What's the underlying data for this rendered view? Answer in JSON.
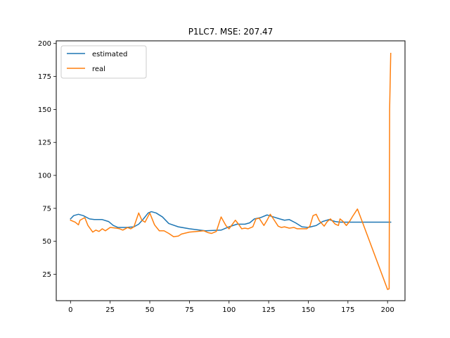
{
  "chart_data": {
    "type": "line",
    "title": "P1LC7. MSE: 207.47",
    "xlabel": "",
    "ylabel": "",
    "xlim": [
      -9,
      211
    ],
    "ylim": [
      5,
      202
    ],
    "xticks": [
      0,
      25,
      50,
      75,
      100,
      125,
      150,
      175,
      200
    ],
    "yticks": [
      25,
      50,
      75,
      100,
      125,
      150,
      175,
      200
    ],
    "legend": "top-left",
    "grid": false,
    "series": [
      {
        "name": "estimated",
        "color": "#1f77b4",
        "points": [
          [
            0,
            67
          ],
          [
            2,
            69.5
          ],
          [
            5,
            70.5
          ],
          [
            8,
            69.5
          ],
          [
            12,
            67
          ],
          [
            15,
            66.5
          ],
          [
            20,
            66.5
          ],
          [
            24,
            65
          ],
          [
            27,
            62
          ],
          [
            30,
            60.5
          ],
          [
            35,
            60.5
          ],
          [
            40,
            61
          ],
          [
            43,
            63
          ],
          [
            46,
            67
          ],
          [
            49,
            71.5
          ],
          [
            51,
            72.5
          ],
          [
            54,
            71.5
          ],
          [
            58,
            68.5
          ],
          [
            62,
            63.5
          ],
          [
            68,
            61
          ],
          [
            75,
            59.5
          ],
          [
            85,
            58
          ],
          [
            95,
            58.5
          ],
          [
            100,
            61
          ],
          [
            105,
            63
          ],
          [
            110,
            63
          ],
          [
            113,
            64
          ],
          [
            116,
            67
          ],
          [
            120,
            68
          ],
          [
            124,
            70
          ],
          [
            128,
            68.5
          ],
          [
            132,
            67
          ],
          [
            135,
            66
          ],
          [
            138,
            66.5
          ],
          [
            142,
            64
          ],
          [
            146,
            61
          ],
          [
            150,
            60.5
          ],
          [
            155,
            62
          ],
          [
            159,
            65
          ],
          [
            163,
            66.5
          ],
          [
            167,
            65
          ],
          [
            170,
            64.5
          ],
          [
            175,
            64.5
          ],
          [
            180,
            64.5
          ],
          [
            190,
            64.5
          ],
          [
            202,
            64.5
          ]
        ]
      },
      {
        "name": "real",
        "color": "#ff7f0e",
        "points": [
          [
            0,
            66
          ],
          [
            3,
            64.5
          ],
          [
            5,
            62.5
          ],
          [
            6,
            66
          ],
          [
            9,
            68
          ],
          [
            11,
            62
          ],
          [
            14,
            57
          ],
          [
            16,
            58.5
          ],
          [
            18,
            57.5
          ],
          [
            20,
            59.5
          ],
          [
            22,
            58
          ],
          [
            25,
            60.5
          ],
          [
            29,
            60
          ],
          [
            31,
            59.5
          ],
          [
            33,
            58.5
          ],
          [
            36,
            60.5
          ],
          [
            38,
            59.5
          ],
          [
            40,
            61
          ],
          [
            43,
            71.5
          ],
          [
            45,
            66
          ],
          [
            47,
            64.5
          ],
          [
            50,
            71.5
          ],
          [
            53,
            62.5
          ],
          [
            56,
            58
          ],
          [
            59,
            58
          ],
          [
            62,
            56
          ],
          [
            65,
            53.5
          ],
          [
            68,
            54
          ],
          [
            70,
            55.5
          ],
          [
            75,
            57
          ],
          [
            80,
            57.5
          ],
          [
            84,
            58
          ],
          [
            87,
            56.5
          ],
          [
            89,
            56
          ],
          [
            92,
            57.5
          ],
          [
            95,
            68.5
          ],
          [
            98,
            62
          ],
          [
            100,
            59.5
          ],
          [
            104,
            66
          ],
          [
            106,
            63
          ],
          [
            108,
            59.5
          ],
          [
            110,
            60
          ],
          [
            112,
            59.5
          ],
          [
            115,
            61
          ],
          [
            117,
            67
          ],
          [
            119,
            67.5
          ],
          [
            122,
            62
          ],
          [
            124,
            66
          ],
          [
            126,
            70.5
          ],
          [
            128,
            67
          ],
          [
            131,
            61.5
          ],
          [
            133,
            60.5
          ],
          [
            135,
            61
          ],
          [
            138,
            60
          ],
          [
            141,
            60.5
          ],
          [
            143,
            59.5
          ],
          [
            146,
            59.5
          ],
          [
            149,
            59.5
          ],
          [
            151,
            61.5
          ],
          [
            153,
            69.5
          ],
          [
            155,
            70.5
          ],
          [
            157,
            65.5
          ],
          [
            160,
            61.5
          ],
          [
            162,
            65
          ],
          [
            164,
            67
          ],
          [
            167,
            63
          ],
          [
            169,
            62
          ],
          [
            170,
            67
          ],
          [
            172,
            65
          ],
          [
            174,
            62
          ],
          [
            176,
            65
          ],
          [
            178,
            69
          ],
          [
            181,
            74.5
          ],
          [
            184,
            65
          ],
          [
            200,
            13.5
          ],
          [
            201,
            14
          ],
          [
            201.3,
            150
          ],
          [
            202,
            192.5
          ]
        ]
      }
    ]
  }
}
